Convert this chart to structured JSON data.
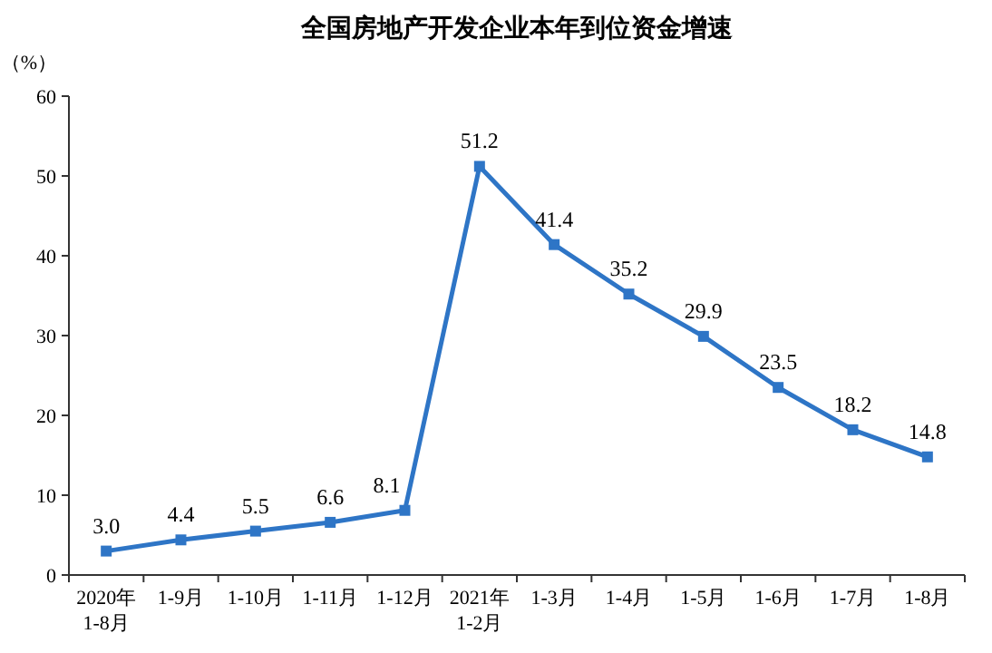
{
  "chart_data": {
    "type": "line",
    "title": "全国房地产开发企业本年到位资金增速",
    "ylabel": "（%）",
    "categories": [
      "2020年\n1-8月",
      "1-9月",
      "1-10月",
      "1-11月",
      "1-12月",
      "2021年\n1-2月",
      "1-3月",
      "1-4月",
      "1-5月",
      "1-6月",
      "1-7月",
      "1-8月"
    ],
    "values": [
      3.0,
      4.4,
      5.5,
      6.6,
      8.1,
      51.2,
      41.4,
      35.2,
      29.9,
      23.5,
      18.2,
      14.8
    ],
    "value_labels": [
      "3.0",
      "4.4",
      "5.5",
      "6.6",
      "8.1",
      "51.2",
      "41.4",
      "35.2",
      "29.9",
      "23.5",
      "18.2",
      "14.8"
    ],
    "color": "#2e75c6",
    "marker": "square",
    "line_style": "solid",
    "ylim": [
      0,
      60
    ],
    "yticks": [
      0,
      10,
      20,
      30,
      40,
      50,
      60
    ],
    "grid": false
  }
}
